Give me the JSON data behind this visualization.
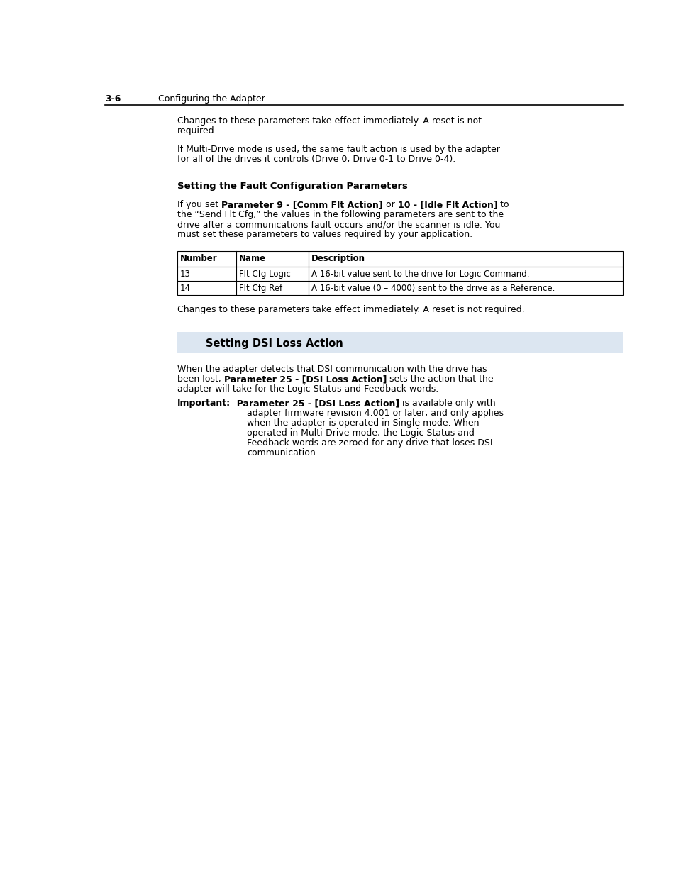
{
  "page_bg": "#ffffff",
  "header_num": "3-6",
  "header_title": "Configuring the Adapter",
  "para1_line1": "Changes to these parameters take effect immediately. A reset is not",
  "para1_line2": "required.",
  "para2_line1": "If Multi-Drive mode is used, the same fault action is used by the adapter",
  "para2_line2": "for all of the drives it controls (Drive 0, Drive 0-1 to Drive 0-4).",
  "sec1_title": "Setting the Fault Configuration Parameters",
  "sec1_p1_normal1": "If you set ",
  "sec1_p1_bold1": "Parameter 9 - [Comm Flt Action]",
  "sec1_p1_normal2": " or ",
  "sec1_p1_bold2": "10 - [Idle Flt Action]",
  "sec1_p1_normal3": " to",
  "sec1_p2_line1": "the “Send Flt Cfg,” the values in the following parameters are sent to the",
  "sec1_p2_line2": "drive after a communications fault occurs and/or the scanner is idle. You",
  "sec1_p2_line3": "must set these parameters to values required by your application.",
  "tbl_h1": "Number",
  "tbl_h2": "Name",
  "tbl_h3": "Description",
  "tbl_r1c1": "13",
  "tbl_r1c2": "Flt Cfg Logic",
  "tbl_r1c3": "A 16-bit value sent to the drive for Logic Command.",
  "tbl_r2c1": "14",
  "tbl_r2c2": "Flt Cfg Ref",
  "tbl_r2c3": "A 16-bit value (0 – 4000) sent to the drive as a Reference.",
  "para3": "Changes to these parameters take effect immediately. A reset is not required.",
  "sec2_title": "Setting DSI Loss Action",
  "sec2_bg": "#dce6f1",
  "sec2_p1_line1": "When the adapter detects that DSI communication with the drive has",
  "sec2_p1_line2_pre": "been lost, ",
  "sec2_p1_line2_bold": "Parameter 25 - [DSI Loss Action]",
  "sec2_p1_line2_post": " sets the action that the",
  "sec2_p1_line3": "adapter will take for the Logic Status and Feedback words.",
  "imp_label": "Important:",
  "imp_bold": "  Parameter 25 - [DSI Loss Action]",
  "imp_normal_end": " is available only with",
  "imp_line2": "adapter firmware revision 4.001 or later, and only applies",
  "imp_line3": "when the adapter is operated in Single mode. When",
  "imp_line4": "operated in Multi-Drive mode, the Logic Status and",
  "imp_line5": "Feedback words are zeroed for any drive that loses DSI",
  "imp_line6": "communication."
}
